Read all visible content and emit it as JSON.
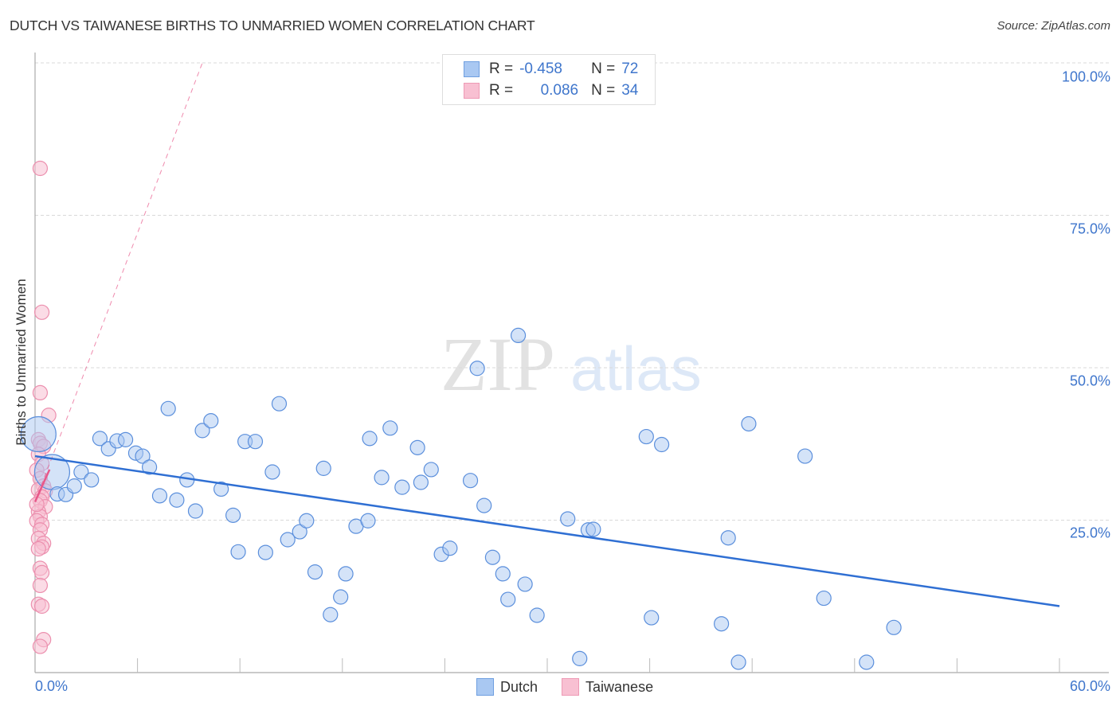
{
  "header": {
    "title": "DUTCH VS TAIWANESE BIRTHS TO UNMARRIED WOMEN CORRELATION CHART",
    "source": "Source: ZipAtlas.com"
  },
  "watermark": {
    "part1": "ZIP",
    "part2": "atlas"
  },
  "legend": {
    "rows": [
      {
        "series": "Dutch",
        "r_label": "R =",
        "r_value": "-0.458",
        "n_label": "N =",
        "n_value": "72",
        "color": "#a9c8f2",
        "border": "#6f9fe0"
      },
      {
        "series": "Taiwanese",
        "r_label": "R =",
        "r_value": "0.086",
        "n_label": "N =",
        "n_value": "34",
        "color": "#f8c0d2",
        "border": "#ee9ab5"
      }
    ]
  },
  "bottom_legend": [
    {
      "label": "Dutch",
      "color": "#a9c8f2",
      "border": "#6f9fe0"
    },
    {
      "label": "Taiwanese",
      "color": "#f8c0d2",
      "border": "#ee9ab5"
    }
  ],
  "axes": {
    "y_label": "Births to Unmarried Women",
    "y_ticks": [
      "100.0%",
      "75.0%",
      "50.0%",
      "25.0%"
    ],
    "x_ticks": [
      "0.0%",
      "60.0%"
    ]
  },
  "colors": {
    "dutch_fill": "#a9c8f2",
    "dutch_stroke": "#5b8fdc",
    "dutch_line": "#2f6fd3",
    "taiwanese_fill": "#f8c0d2",
    "taiwanese_stroke": "#ec8fae",
    "taiwanese_line": "#e8588a",
    "tick_label": "#3f76cc"
  },
  "chart_data": {
    "type": "scatter",
    "title": "DUTCH VS TAIWANESE BIRTHS TO UNMARRIED WOMEN CORRELATION CHART",
    "xlabel": "",
    "ylabel": "Births to Unmarried Women",
    "xlim": [
      0,
      60
    ],
    "ylim": [
      0,
      100
    ],
    "x_tick_labels": [
      "0.0%",
      "60.0%"
    ],
    "y_tick_labels": [
      "25.0%",
      "50.0%",
      "75.0%",
      "100.0%"
    ],
    "grid": "horizontal dashed",
    "legend_position": "top-center and bottom",
    "series": [
      {
        "name": "Dutch",
        "R": -0.458,
        "N": 72,
        "trend": {
          "x": [
            0,
            60
          ],
          "y": [
            35.5,
            10.9
          ]
        },
        "points": [
          [
            0.2,
            39.1,
            22
          ],
          [
            1.0,
            32.9,
            22
          ],
          [
            1.3,
            29.3
          ],
          [
            1.8,
            29.2
          ],
          [
            2.3,
            30.6
          ],
          [
            2.7,
            32.9
          ],
          [
            3.3,
            31.6
          ],
          [
            3.8,
            38.4
          ],
          [
            4.3,
            36.7
          ],
          [
            4.8,
            38.0
          ],
          [
            5.3,
            38.2
          ],
          [
            5.9,
            36.0
          ],
          [
            6.3,
            35.5
          ],
          [
            6.7,
            33.7
          ],
          [
            7.3,
            29.0
          ],
          [
            7.8,
            43.3
          ],
          [
            8.3,
            28.3
          ],
          [
            8.9,
            31.6
          ],
          [
            9.4,
            26.5
          ],
          [
            9.8,
            39.7
          ],
          [
            10.3,
            41.3
          ],
          [
            10.9,
            30.1
          ],
          [
            11.6,
            25.8
          ],
          [
            11.9,
            19.8
          ],
          [
            12.3,
            37.9
          ],
          [
            12.9,
            37.9
          ],
          [
            13.5,
            19.7
          ],
          [
            13.9,
            32.9
          ],
          [
            14.3,
            44.1
          ],
          [
            14.8,
            21.8
          ],
          [
            15.5,
            23.1
          ],
          [
            15.9,
            24.9
          ],
          [
            16.4,
            16.5
          ],
          [
            16.9,
            33.5
          ],
          [
            17.3,
            9.5
          ],
          [
            17.9,
            12.4
          ],
          [
            18.2,
            16.2
          ],
          [
            18.8,
            24.0
          ],
          [
            19.5,
            24.9
          ],
          [
            19.6,
            38.4
          ],
          [
            20.3,
            32.0
          ],
          [
            20.8,
            40.1
          ],
          [
            21.5,
            30.4
          ],
          [
            22.4,
            36.9
          ],
          [
            22.6,
            31.2
          ],
          [
            23.2,
            33.3
          ],
          [
            23.8,
            19.4
          ],
          [
            24.3,
            20.4
          ],
          [
            25.5,
            31.5
          ],
          [
            25.9,
            49.9
          ],
          [
            26.3,
            27.4
          ],
          [
            26.8,
            18.9
          ],
          [
            27.4,
            16.2
          ],
          [
            27.7,
            12.0
          ],
          [
            28.3,
            55.3
          ],
          [
            28.7,
            14.5
          ],
          [
            29.4,
            9.4
          ],
          [
            31.2,
            25.2
          ],
          [
            31.9,
            2.3
          ],
          [
            32.4,
            23.4
          ],
          [
            32.7,
            23.5
          ],
          [
            35.8,
            38.7
          ],
          [
            36.1,
            9.0
          ],
          [
            36.7,
            37.4
          ],
          [
            40.2,
            8.0
          ],
          [
            40.6,
            22.1
          ],
          [
            41.2,
            1.7
          ],
          [
            41.8,
            40.8
          ],
          [
            45.1,
            35.5
          ],
          [
            46.2,
            12.2
          ],
          [
            48.7,
            1.7
          ],
          [
            50.3,
            7.4
          ]
        ]
      },
      {
        "name": "Taiwanese",
        "R": 0.086,
        "N": 34,
        "trend_solid": {
          "x": [
            0,
            0.85
          ],
          "y": [
            28.0,
            33.3
          ]
        },
        "trend_dashed": {
          "x": [
            0,
            9.8
          ],
          "y": [
            28.0,
            100
          ]
        },
        "points": [
          [
            0.3,
            82.7
          ],
          [
            0.4,
            59.1
          ],
          [
            0.3,
            45.9
          ],
          [
            0.8,
            42.2
          ],
          [
            0.2,
            38.2
          ],
          [
            0.3,
            37.6
          ],
          [
            0.5,
            37.1
          ],
          [
            0.2,
            35.8
          ],
          [
            0.4,
            34.3
          ],
          [
            0.1,
            33.2
          ],
          [
            0.3,
            31.8
          ],
          [
            0.5,
            30.6
          ],
          [
            0.2,
            30.0
          ],
          [
            0.6,
            29.8
          ],
          [
            0.4,
            28.8
          ],
          [
            0.3,
            28.2
          ],
          [
            0.6,
            27.2
          ],
          [
            0.2,
            26.4
          ],
          [
            0.3,
            25.6
          ],
          [
            0.1,
            24.9
          ],
          [
            0.4,
            24.3
          ],
          [
            0.3,
            23.4
          ],
          [
            0.2,
            22.0
          ],
          [
            0.5,
            21.2
          ],
          [
            0.4,
            20.6
          ],
          [
            0.2,
            20.3
          ],
          [
            0.3,
            17.1
          ],
          [
            0.4,
            16.4
          ],
          [
            0.3,
            14.3
          ],
          [
            0.2,
            11.2
          ],
          [
            0.4,
            10.9
          ],
          [
            0.5,
            5.4
          ],
          [
            0.3,
            4.3
          ],
          [
            0.1,
            27.6
          ]
        ]
      }
    ]
  }
}
